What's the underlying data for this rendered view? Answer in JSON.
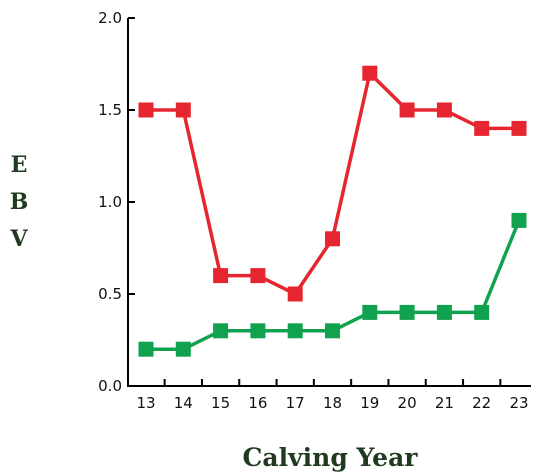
{
  "chart_data": {
    "type": "line",
    "title": "",
    "xlabel": "Calving Year",
    "ylabel": "EBV",
    "categories": [
      "13",
      "14",
      "15",
      "16",
      "17",
      "18",
      "19",
      "20",
      "21",
      "22",
      "23"
    ],
    "ylim": [
      0.0,
      2.0
    ],
    "yticks": [
      "0.0",
      "0.5",
      "1.0",
      "1.5",
      "2.0"
    ],
    "grid": false,
    "series": [
      {
        "color": "#e52630",
        "marker": "square",
        "values": [
          1.5,
          1.5,
          0.6,
          0.6,
          0.5,
          0.8,
          1.7,
          1.5,
          1.5,
          1.4,
          1.4
        ]
      },
      {
        "color": "#11a24f",
        "marker": "square",
        "values": [
          0.2,
          0.2,
          0.3,
          0.3,
          0.3,
          0.3,
          0.4,
          0.4,
          0.4,
          0.4,
          0.9
        ]
      }
    ]
  }
}
